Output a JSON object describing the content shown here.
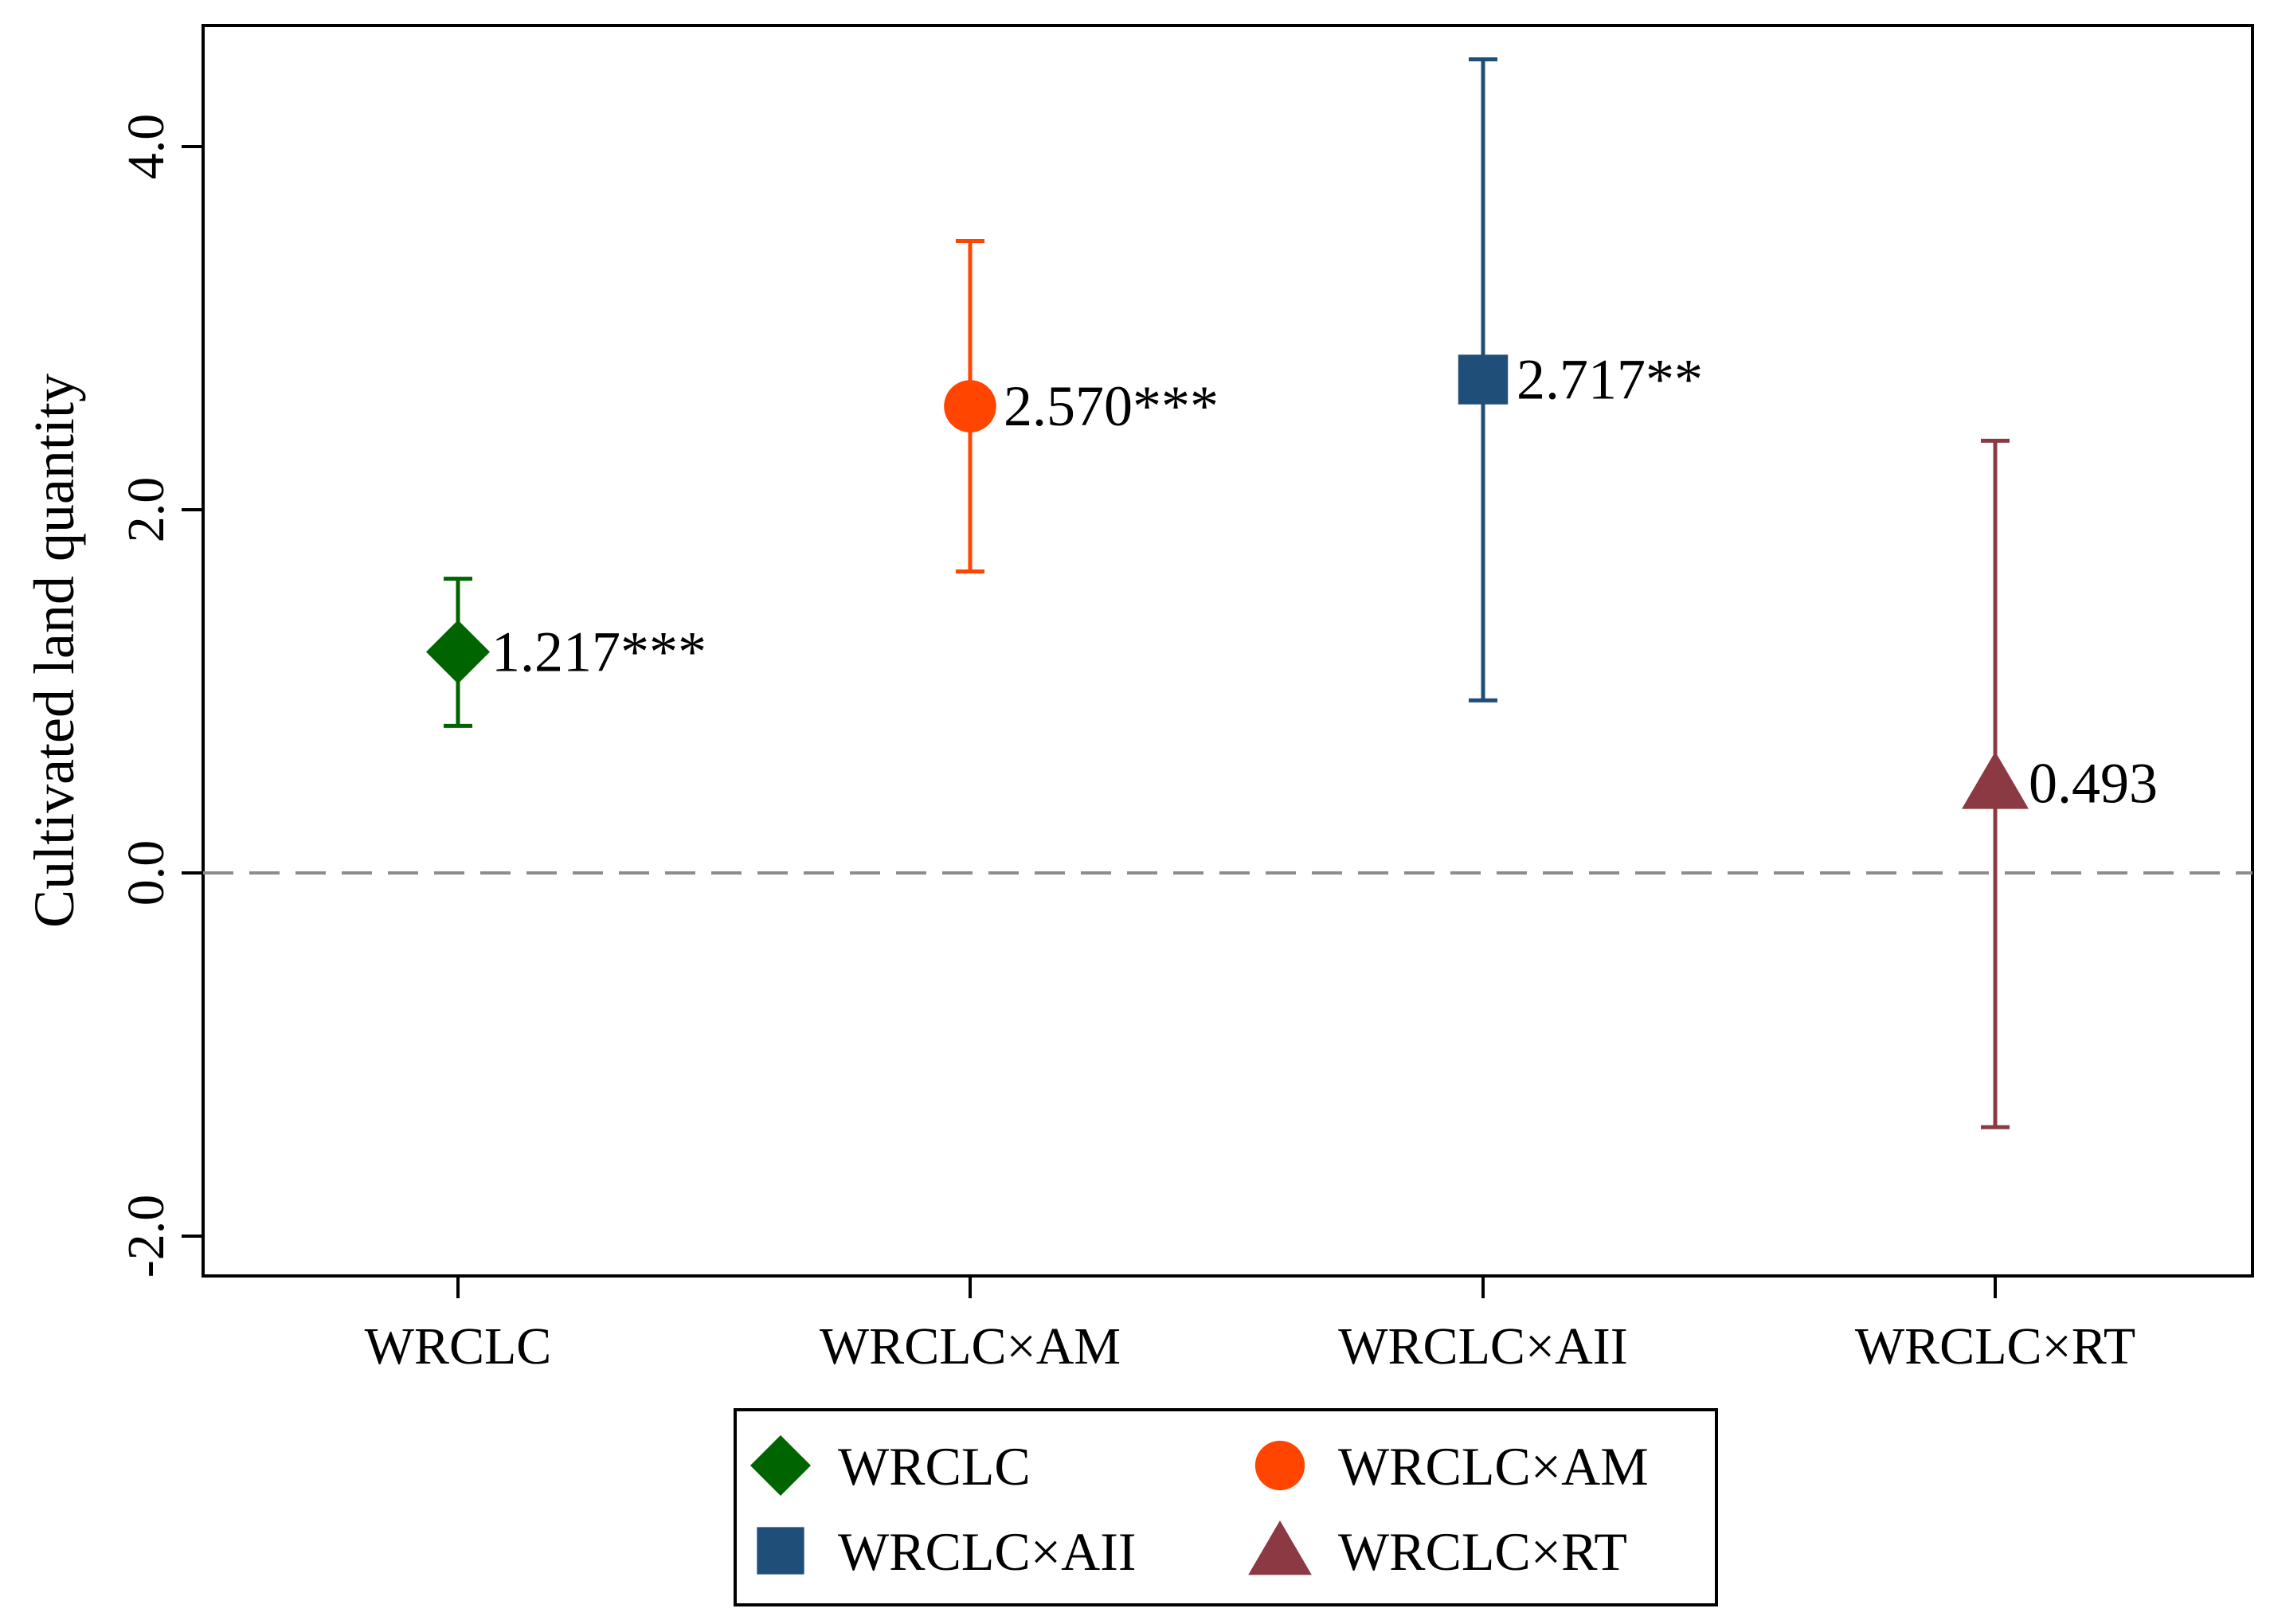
{
  "chart_data": {
    "type": "scatter",
    "ylabel": "Cultivated land quantity",
    "xlabel": "",
    "ylim": [
      -2.2,
      4.7
    ],
    "yticks": [
      -2.0,
      0.0,
      2.0,
      4.0
    ],
    "ytick_labels": [
      "-2.0",
      "0.0",
      "2.0",
      "4.0"
    ],
    "reference_line": {
      "y": 0.0,
      "style": "dashed"
    },
    "categories": [
      "WRCLC",
      "WRCLC×AM",
      "WRCLC×AII",
      "WRCLC×RT"
    ],
    "series": [
      {
        "name": "WRCLC",
        "category": "WRCLC",
        "value": 1.217,
        "ci_low": 0.81,
        "ci_high": 1.62,
        "label": "1.217***",
        "marker": "diamond",
        "color": "#006400"
      },
      {
        "name": "WRCLC×AM",
        "category": "WRCLC×AM",
        "value": 2.57,
        "ci_low": 1.66,
        "ci_high": 3.48,
        "label": "2.570***",
        "marker": "circle",
        "color": "#ff4500"
      },
      {
        "name": "WRCLC×AII",
        "category": "WRCLC×AII",
        "value": 2.717,
        "ci_low": 0.95,
        "ci_high": 4.48,
        "label": "2.717**",
        "marker": "square",
        "color": "#1f4e79"
      },
      {
        "name": "WRCLC×RT",
        "category": "WRCLC×RT",
        "value": 0.493,
        "ci_low": -1.4,
        "ci_high": 2.38,
        "label": "0.493",
        "marker": "triangle",
        "color": "#8b3a44"
      }
    ],
    "legend": {
      "placement": "bottom-center",
      "entries": [
        "WRCLC",
        "WRCLC×AM",
        "WRCLC×AII",
        "WRCLC×RT"
      ]
    },
    "grid": false
  }
}
